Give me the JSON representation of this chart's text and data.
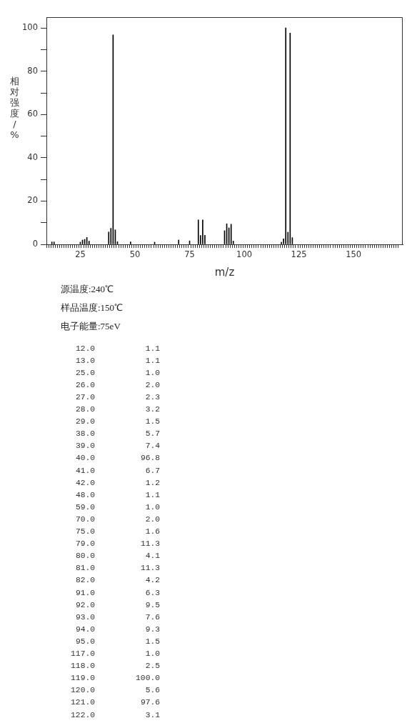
{
  "chart_data": [
    {
      "type": "bar",
      "xlabel": "m/z",
      "ylabel": "相对强度/%",
      "annotations": [
        "源温度:240℃",
        "样品温度:150℃",
        "电子能量:75eV"
      ],
      "x": [
        12,
        13,
        25,
        26,
        27,
        28,
        29,
        38,
        39,
        40,
        41,
        42,
        48,
        59,
        70,
        75,
        79,
        80,
        81,
        82,
        91,
        92,
        93,
        94,
        95,
        117,
        118,
        119,
        120,
        121,
        122
      ],
      "values": [
        1.1,
        1.1,
        1.0,
        2.0,
        2.3,
        3.2,
        1.5,
        5.7,
        7.4,
        96.8,
        6.7,
        1.2,
        1.1,
        1.0,
        2.0,
        1.6,
        11.3,
        4.1,
        11.3,
        4.2,
        6.3,
        9.5,
        7.6,
        9.3,
        1.5,
        1.0,
        2.5,
        100.0,
        5.6,
        97.6,
        3.1
      ],
      "color": "#000000",
      "xlim": [
        10,
        172
      ],
      "xticks": [
        {
          "value": 10,
          "label": null
        },
        {
          "value": 11,
          "label": null
        },
        {
          "value": 12,
          "label": null
        },
        {
          "value": 13,
          "label": null
        },
        {
          "value": 14,
          "label": null
        },
        {
          "value": 15,
          "label": null
        },
        {
          "value": 16,
          "label": null
        },
        {
          "value": 17,
          "label": null
        },
        {
          "value": 18,
          "label": null
        },
        {
          "value": 19,
          "label": null
        },
        {
          "value": 20,
          "label": null
        },
        {
          "value": 21,
          "label": null
        },
        {
          "value": 22,
          "label": null
        },
        {
          "value": 23,
          "label": null
        },
        {
          "value": 24,
          "label": null
        },
        25,
        {
          "value": 26,
          "label": null
        },
        {
          "value": 27,
          "label": null
        },
        {
          "value": 28,
          "label": null
        },
        {
          "value": 29,
          "label": null
        },
        {
          "value": 30,
          "label": null
        },
        {
          "value": 31,
          "label": null
        },
        {
          "value": 32,
          "label": null
        },
        {
          "value": 33,
          "label": null
        },
        {
          "value": 34,
          "label": null
        },
        {
          "value": 35,
          "label": null
        },
        {
          "value": 36,
          "label": null
        },
        {
          "value": 37,
          "label": null
        },
        {
          "value": 38,
          "label": null
        },
        {
          "value": 39,
          "label": null
        },
        {
          "value": 40,
          "label": null
        },
        {
          "value": 41,
          "label": null
        },
        {
          "value": 42,
          "label": null
        },
        {
          "value": 43,
          "label": null
        },
        {
          "value": 44,
          "label": null
        },
        {
          "value": 45,
          "label": null
        },
        {
          "value": 46,
          "label": null
        },
        {
          "value": 47,
          "label": null
        },
        {
          "value": 48,
          "label": null
        },
        {
          "value": 49,
          "label": null
        },
        50,
        {
          "value": 51,
          "label": null
        },
        {
          "value": 52,
          "label": null
        },
        {
          "value": 53,
          "label": null
        },
        {
          "value": 54,
          "label": null
        },
        {
          "value": 55,
          "label": null
        },
        {
          "value": 56,
          "label": null
        },
        {
          "value": 57,
          "label": null
        },
        {
          "value": 58,
          "label": null
        },
        {
          "value": 59,
          "label": null
        },
        {
          "value": 60,
          "label": null
        },
        {
          "value": 61,
          "label": null
        },
        {
          "value": 62,
          "label": null
        },
        {
          "value": 63,
          "label": null
        },
        {
          "value": 64,
          "label": null
        },
        {
          "value": 65,
          "label": null
        },
        {
          "value": 66,
          "label": null
        },
        {
          "value": 67,
          "label": null
        },
        {
          "value": 68,
          "label": null
        },
        {
          "value": 69,
          "label": null
        },
        {
          "value": 70,
          "label": null
        },
        {
          "value": 71,
          "label": null
        },
        {
          "value": 72,
          "label": null
        },
        {
          "value": 73,
          "label": null
        },
        {
          "value": 74,
          "label": null
        },
        75,
        {
          "value": 76,
          "label": null
        },
        {
          "value": 77,
          "label": null
        },
        {
          "value": 78,
          "label": null
        },
        {
          "value": 79,
          "label": null
        },
        {
          "value": 80,
          "label": null
        },
        {
          "value": 81,
          "label": null
        },
        {
          "value": 82,
          "label": null
        },
        {
          "value": 83,
          "label": null
        },
        {
          "value": 84,
          "label": null
        },
        {
          "value": 85,
          "label": null
        },
        {
          "value": 86,
          "label": null
        },
        {
          "value": 87,
          "label": null
        },
        {
          "value": 88,
          "label": null
        },
        {
          "value": 89,
          "label": null
        },
        {
          "value": 90,
          "label": null
        },
        {
          "value": 91,
          "label": null
        },
        {
          "value": 92,
          "label": null
        },
        {
          "value": 93,
          "label": null
        },
        {
          "value": 94,
          "label": null
        },
        {
          "value": 95,
          "label": null
        },
        {
          "value": 96,
          "label": null
        },
        {
          "value": 97,
          "label": null
        },
        {
          "value": 98,
          "label": null
        },
        {
          "value": 99,
          "label": null
        },
        100,
        {
          "value": 101,
          "label": null
        },
        {
          "value": 102,
          "label": null
        },
        {
          "value": 103,
          "label": null
        },
        {
          "value": 104,
          "label": null
        },
        {
          "value": 105,
          "label": null
        },
        {
          "value": 106,
          "label": null
        },
        {
          "value": 107,
          "label": null
        },
        {
          "value": 108,
          "label": null
        },
        {
          "value": 109,
          "label": null
        },
        {
          "value": 110,
          "label": null
        },
        {
          "value": 111,
          "label": null
        },
        {
          "value": 112,
          "label": null
        },
        {
          "value": 113,
          "label": null
        },
        {
          "value": 114,
          "label": null
        },
        {
          "value": 115,
          "label": null
        },
        {
          "value": 116,
          "label": null
        },
        {
          "value": 117,
          "label": null
        },
        {
          "value": 118,
          "label": null
        },
        {
          "value": 119,
          "label": null
        },
        {
          "value": 120,
          "label": null
        },
        {
          "value": 121,
          "label": null
        },
        {
          "value": 122,
          "label": null
        },
        {
          "value": 123,
          "label": null
        },
        {
          "value": 124,
          "label": null
        },
        125,
        {
          "value": 126,
          "label": null
        },
        {
          "value": 127,
          "label": null
        },
        {
          "value": 128,
          "label": null
        },
        {
          "value": 129,
          "label": null
        },
        {
          "value": 130,
          "label": null
        },
        {
          "value": 131,
          "label": null
        },
        {
          "value": 132,
          "label": null
        },
        {
          "value": 133,
          "label": null
        },
        {
          "value": 134,
          "label": null
        },
        {
          "value": 135,
          "label": null
        },
        {
          "value": 136,
          "label": null
        },
        {
          "value": 137,
          "label": null
        },
        {
          "value": 138,
          "label": null
        },
        {
          "value": 139,
          "label": null
        },
        {
          "value": 140,
          "label": null
        },
        {
          "value": 141,
          "label": null
        },
        {
          "value": 142,
          "label": null
        },
        {
          "value": 143,
          "label": null
        },
        {
          "value": 144,
          "label": null
        },
        {
          "value": 145,
          "label": null
        },
        {
          "value": 146,
          "label": null
        },
        {
          "value": 147,
          "label": null
        },
        {
          "value": 148,
          "label": null
        },
        {
          "value": 149,
          "label": null
        },
        150,
        {
          "value": 151,
          "label": null
        },
        {
          "value": 152,
          "label": null
        },
        {
          "value": 153,
          "label": null
        },
        {
          "value": 154,
          "label": null
        },
        {
          "value": 155,
          "label": null
        },
        {
          "value": 156,
          "label": null
        },
        {
          "value": 157,
          "label": null
        },
        {
          "value": 158,
          "label": null
        },
        {
          "value": 159,
          "label": null
        },
        {
          "value": 160,
          "label": null
        },
        {
          "value": 161,
          "label": null
        },
        {
          "value": 162,
          "label": null
        },
        {
          "value": 163,
          "label": null
        },
        {
          "value": 164,
          "label": null
        },
        {
          "value": 165,
          "label": null
        },
        {
          "value": 166,
          "label": null
        },
        {
          "value": 167,
          "label": null
        },
        {
          "value": 168,
          "label": null
        },
        {
          "value": 169,
          "label": null
        },
        {
          "value": 170,
          "label": null
        }
      ],
      "ylim": [
        0,
        105
      ],
      "yticks": [
        0,
        {
          "value": 10,
          "label": null
        },
        20,
        {
          "value": 30,
          "label": null
        },
        40,
        {
          "value": 50,
          "label": null
        },
        60,
        {
          "value": 70,
          "label": null
        },
        80,
        {
          "value": 90,
          "label": null
        },
        100
      ]
    },
    {
      "type": "other",
      "annotations": [
        "12.0",
        "1.1",
        "13.0",
        "1.1",
        "25.0",
        "1.0",
        "26.0",
        "2.0",
        "27.0",
        "2.3",
        "28.0",
        "3.2",
        "29.0",
        "1.5",
        "38.0",
        "5.7",
        "39.0",
        "7.4",
        "40.0",
        "96.8",
        "41.0",
        "6.7",
        "42.0",
        "1.2",
        "48.0",
        "1.1",
        "59.0",
        "1.0",
        "70.0",
        "2.0",
        "75.0",
        "1.6",
        "79.0",
        "11.3",
        "80.0",
        "4.1",
        "81.0",
        "11.3",
        "82.0",
        "4.2",
        "91.0",
        "6.3",
        "92.0",
        "9.5",
        "93.0",
        "7.6",
        "94.0",
        "9.3",
        "95.0",
        "1.5",
        "117.0",
        "1.0",
        "118.0",
        "2.5",
        "119.0",
        "100.0",
        "120.0",
        "5.6",
        "121.0",
        "97.6",
        "122.0",
        "3.1"
      ]
    }
  ]
}
